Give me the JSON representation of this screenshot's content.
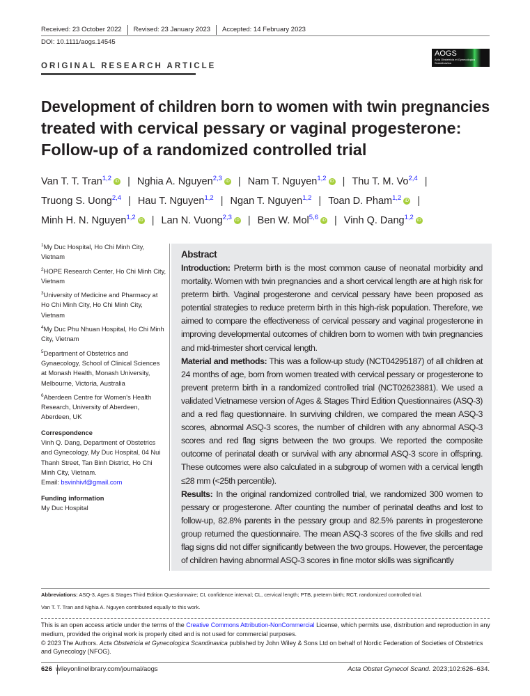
{
  "history": [
    "Received: 23 October 2022",
    "Revised: 23 January 2023",
    "Accepted: 14 February 2023"
  ],
  "doi": "DOI: 10.1111/aogs.14545",
  "article_type": "ORIGINAL RESEARCH ARTICLE",
  "logo": {
    "name": "AOGS",
    "subtitle": "Acta Obstetricia et Gynecologica Scandinavica"
  },
  "title_lines": [
    "Development of children born to women with twin pregnancies",
    "treated with cervical pessary or vaginal progesterone:",
    "Follow-up of a randomized controlled trial"
  ],
  "authors": [
    {
      "name": "Van T. T. Tran",
      "aff": "1,2",
      "orcid": true
    },
    {
      "name": "Nghia A. Nguyen",
      "aff": "2,3",
      "orcid": true
    },
    {
      "name": "Nam T. Nguyen",
      "aff": "1,2",
      "orcid": true
    },
    {
      "name": "Thu T. M. Vo",
      "aff": "2,4",
      "orcid": false
    },
    {
      "name": "Truong S. Uong",
      "aff": "2,4",
      "orcid": false
    },
    {
      "name": "Hau T. Nguyen",
      "aff": "1,2",
      "orcid": false
    },
    {
      "name": "Ngan T. Nguyen",
      "aff": "1,2",
      "orcid": false
    },
    {
      "name": "Toan D. Pham",
      "aff": "1,2",
      "orcid": true
    },
    {
      "name": "Minh H. N. Nguyen",
      "aff": "1,2",
      "orcid": true
    },
    {
      "name": "Lan N. Vuong",
      "aff": "2,3",
      "orcid": true
    },
    {
      "name": "Ben W. Mol",
      "aff": "5,6",
      "orcid": true
    },
    {
      "name": "Vinh Q. Dang",
      "aff": "1,2",
      "orcid": true
    }
  ],
  "orcid_label": "iD",
  "affiliations": [
    {
      "n": "1",
      "text": "My Duc Hospital, Ho Chi Minh City, Vietnam"
    },
    {
      "n": "2",
      "text": "HOPE Research Center, Ho Chi Minh City, Vietnam"
    },
    {
      "n": "3",
      "text": "University of Medicine and Pharmacy at Ho Chi Minh City, Ho Chi Minh City, Vietnam"
    },
    {
      "n": "4",
      "text": "My Duc Phu Nhuan Hospital, Ho Chi Minh City, Vietnam"
    },
    {
      "n": "5",
      "text": "Department of Obstetrics and Gynaecology, School of Clinical Sciences at Monash Health, Monash University, Melbourne, Victoria, Australia"
    },
    {
      "n": "6",
      "text": "Aberdeen Centre for Women's Health Research, University of Aberdeen, Aberdeen, UK"
    }
  ],
  "correspondence": {
    "heading": "Correspondence",
    "text": "Vinh Q. Dang, Department of Obstetrics and Gynecology, My Duc Hospital, 04 Nui Thanh Street, Tan Binh District, Ho Chi Minh City, Vietnam.",
    "email_label": "Email: ",
    "email": "bsvinhivf@gmail.com"
  },
  "funding": {
    "heading": "Funding information",
    "text": "My Duc Hospital"
  },
  "abstract": {
    "heading": "Abstract",
    "sections": [
      {
        "label": "Introduction:",
        "text": " Preterm birth is the most common cause of neonatal morbidity and mortality. Women with twin pregnancies and a short cervical length are at high risk for preterm birth. Vaginal progesterone and cervical pessary have been proposed as potential strategies to reduce preterm birth in this high-risk population. Therefore, we aimed to compare the effectiveness of cervical pessary and vaginal progesterone in improving developmental outcomes of children born to women with twin pregnancies and mid-trimester short cervical length."
      },
      {
        "label": "Material and methods:",
        "text": " This was a follow-up study (NCT04295187) of all children at 24 months of age, born from women treated with cervical pessary or progesterone to prevent preterm birth in a randomized controlled trial (NCT02623881). We used a validated Vietnamese version of Ages & Stages Third Edition Questionnaires (ASQ-3) and a red flag questionnaire. In surviving children, we compared the mean ASQ-3 scores, abnormal ASQ-3 scores, the number of children with any abnormal ASQ-3 scores and red flag signs between the two groups. We reported the composite outcome of perinatal death or survival with any abnormal ASQ-3 score in offspring. These outcomes were also calculated in a subgroup of women with a cervical length ≤28 mm (<25th percentile)."
      },
      {
        "label": "Results:",
        "text": " In the original randomized controlled trial, we randomized 300 women to pessary or progesterone. After counting the number of perinatal deaths and lost to follow-up, 82.8% parents in the pessary group and 82.5% parents in progesterone group returned the questionnaire. The mean ASQ-3 scores of the five skills and red flag signs did not differ significantly between the two groups. However, the percentage of children having abnormal ASQ-3 scores in fine motor skills was significantly"
      }
    ]
  },
  "abbreviations": {
    "label": "Abbreviations:",
    "text": " ASQ-3, Ages & Stages Third Edition Questionnaire; CI, confidence interval; CL, cervical length; PTB, preterm birth; RCT, randomized controlled trial."
  },
  "contribution": "Van T. T. Tran and Nghia A. Nguyen contributed equally to this work.",
  "license": {
    "pre": "This is an open access article under the terms of the ",
    "link": "Creative Commons Attribution-NonCommercial",
    "post": " License, which permits use, distribution and reproduction in any medium, provided the original work is properly cited and is not used for commercial purposes.",
    "copy_pre": "© 2023 The Authors. ",
    "journal": "Acta Obstetricia et Gynecologica Scandinavica",
    "copy_post": " published by John Wiley & Sons Ltd on behalf of Nordic Federation of Societies of Obstetrics and Gynecology (NFOG)."
  },
  "footer": {
    "page": "626",
    "site": "wileyonlinelibrary.com/journal/aogs",
    "cite_journal": "Acta Obstet Gynecol Scand.",
    "cite_rest": " 2023;102:626–634."
  },
  "colors": {
    "link": "#1a1aff",
    "orcid": "#a6ce39",
    "abstract_bg": "#e7e8ea"
  }
}
